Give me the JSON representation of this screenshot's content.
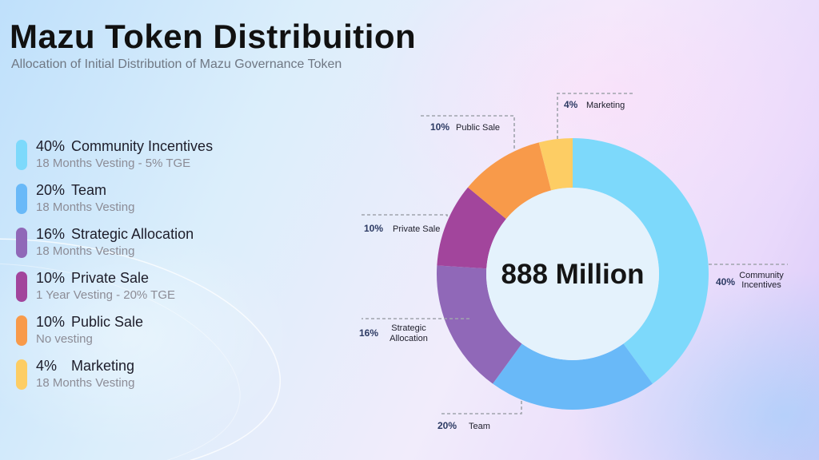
{
  "header": {
    "title": "Mazu Token Distribuition",
    "subtitle": "Allocation of Initial Distribution of Mazu Governance Token"
  },
  "legend": [
    {
      "pct": "40%",
      "name": "Community Incentives",
      "detail": "18 Months Vesting - 5% TGE",
      "color": "#7dd9fb"
    },
    {
      "pct": "20%",
      "name": "Team",
      "detail": "18 Months Vesting",
      "color": "#69b9f8"
    },
    {
      "pct": "16%",
      "name": "Strategic Allocation",
      "detail": "18 Months Vesting",
      "color": "#9068b8"
    },
    {
      "pct": "10%",
      "name": "Private Sale",
      "detail": "1 Year Vesting - 20% TGE",
      "color": "#a2459c"
    },
    {
      "pct": "10%",
      "name": "Public Sale",
      "detail": "No vesting",
      "color": "#f89a4a"
    },
    {
      "pct": "4%",
      "name": "Marketing",
      "detail": "18 Months Vesting",
      "color": "#fdcd64"
    }
  ],
  "chart_data": {
    "type": "pie",
    "donut": true,
    "center_label": "888 Million",
    "categories": [
      "Community Incentives",
      "Team",
      "Strategic Allocation",
      "Private Sale",
      "Public Sale",
      "Marketing"
    ],
    "values": [
      40,
      20,
      16,
      10,
      10,
      4
    ],
    "unit": "%",
    "colors": [
      "#7dd9fb",
      "#69b9f8",
      "#9068b8",
      "#a2459c",
      "#f89a4a",
      "#fdcd64"
    ],
    "slice_labels": [
      {
        "pct": "40%",
        "lines": [
          "Community",
          "Incentives"
        ]
      },
      {
        "pct": "20%",
        "lines": [
          "Team"
        ]
      },
      {
        "pct": "16%",
        "lines": [
          "Strategic",
          "Allocation"
        ]
      },
      {
        "pct": "10%",
        "lines": [
          "Private Sale"
        ]
      },
      {
        "pct": "10%",
        "lines": [
          "Public Sale"
        ]
      },
      {
        "pct": "4%",
        "lines": [
          "Marketing"
        ]
      }
    ]
  }
}
